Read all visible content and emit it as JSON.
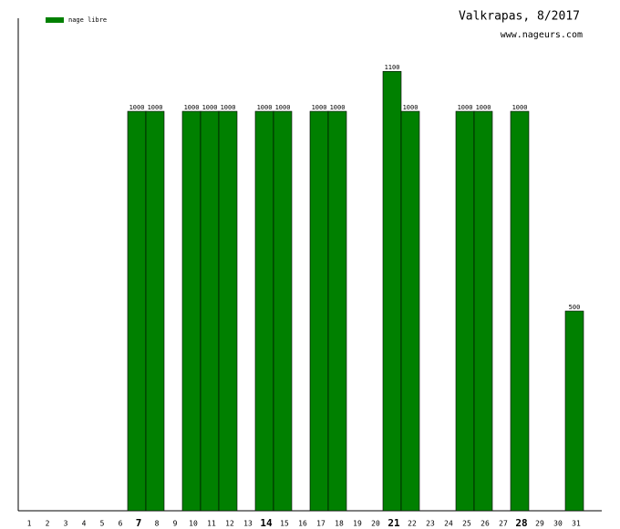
{
  "chart_data": {
    "type": "bar",
    "title": "Valkrapas, 8/2017",
    "subtitle": "www.nageurs.com",
    "categories": [
      "1",
      "2",
      "3",
      "4",
      "5",
      "6",
      "7",
      "8",
      "9",
      "10",
      "11",
      "12",
      "13",
      "14",
      "15",
      "16",
      "17",
      "18",
      "19",
      "20",
      "21",
      "22",
      "23",
      "24",
      "25",
      "26",
      "27",
      "28",
      "29",
      "30",
      "31"
    ],
    "series": [
      {
        "name": "nage libre",
        "color": "#008000",
        "values": [
          null,
          null,
          null,
          null,
          null,
          null,
          1000,
          1000,
          null,
          1000,
          1000,
          1000,
          null,
          1000,
          1000,
          null,
          1000,
          1000,
          null,
          null,
          1100,
          1000,
          null,
          null,
          1000,
          1000,
          null,
          1000,
          null,
          null,
          500
        ]
      }
    ],
    "ylim": [
      0,
      1233
    ]
  }
}
